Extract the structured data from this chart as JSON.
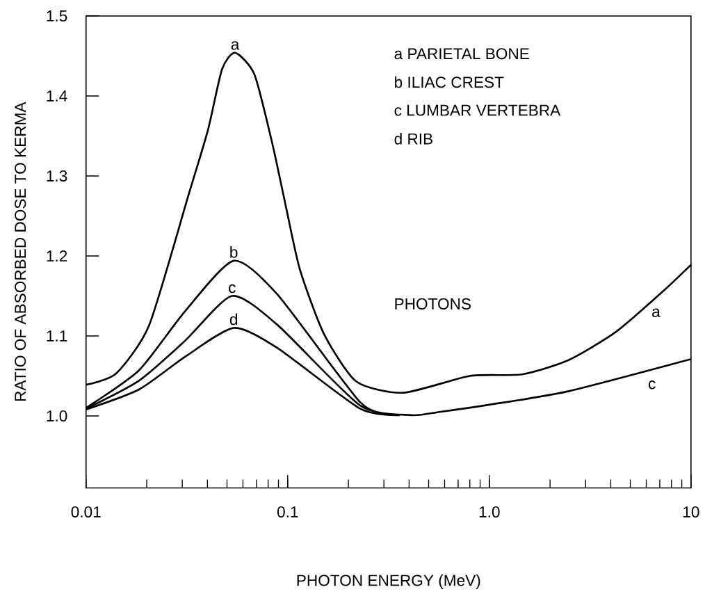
{
  "chart_data": {
    "type": "line",
    "xlabel": "PHOTON ENERGY (MeV)",
    "ylabel": "RATIO OF ABSORBED DOSE TO KERMA",
    "log": "x",
    "xlim": [
      0.01,
      10
    ],
    "ylim": [
      0.91,
      1.5
    ],
    "xticks": [
      0.01,
      0.1,
      {
        "value": 1,
        "label": "1.0"
      },
      10
    ],
    "yticks": [
      {
        "value": 1,
        "label": "1.0"
      },
      1.1,
      1.2,
      1.3,
      1.4,
      1.5
    ],
    "grid": false,
    "legend": false,
    "marker": "none",
    "line_style": "solid",
    "series": [
      {
        "name": "a",
        "color": "#000000",
        "x": [
          0.01,
          0.0141,
          0.0206,
          0.0323,
          0.0402,
          0.0472,
          0.0548,
          0.0684,
          0.084,
          0.0985,
          0.115,
          0.151,
          0.219,
          0.375,
          0.8,
          1.45,
          2.48,
          4.29,
          7.35,
          10
        ],
        "values": [
          1.039,
          1.053,
          1.114,
          1.277,
          1.357,
          1.433,
          1.454,
          1.427,
          1.34,
          1.259,
          1.183,
          1.103,
          1.043,
          1.029,
          1.05,
          1.052,
          1.07,
          1.106,
          1.157,
          1.189
        ]
      },
      {
        "name": "b",
        "color": "#000000",
        "x": [
          0.01,
          0.0183,
          0.031,
          0.054,
          0.0888,
          0.229,
          0.33
        ],
        "values": [
          1.01,
          1.057,
          1.131,
          1.194,
          1.152,
          1.017,
          1.002
        ]
      },
      {
        "name": "c",
        "color": "#000000",
        "x": [
          0.01,
          0.0183,
          0.031,
          0.053,
          0.0888,
          0.229,
          0.41,
          0.566,
          1,
          2.48,
          10
        ],
        "values": [
          1.009,
          1.044,
          1.094,
          1.15,
          1.114,
          1.013,
          1.001,
          1.005,
          1.014,
          1.031,
          1.071
        ]
      },
      {
        "name": "d",
        "color": "#000000",
        "x": [
          0.01,
          0.0183,
          0.031,
          0.054,
          0.0888,
          0.229,
          0.36
        ],
        "values": [
          1.008,
          1.033,
          1.074,
          1.11,
          1.085,
          1.009,
          1.001
        ]
      }
    ],
    "annotations": [
      "a PARIETAL BONE",
      "b ILIAC CREST",
      "c LUMBAR VERTEBRA",
      "d RIB",
      "PHOTONS",
      {
        "text": "a",
        "x": 6.7,
        "y": 1.148
      },
      {
        "text": "c",
        "x": 6.4,
        "y": 1.058
      }
    ]
  }
}
